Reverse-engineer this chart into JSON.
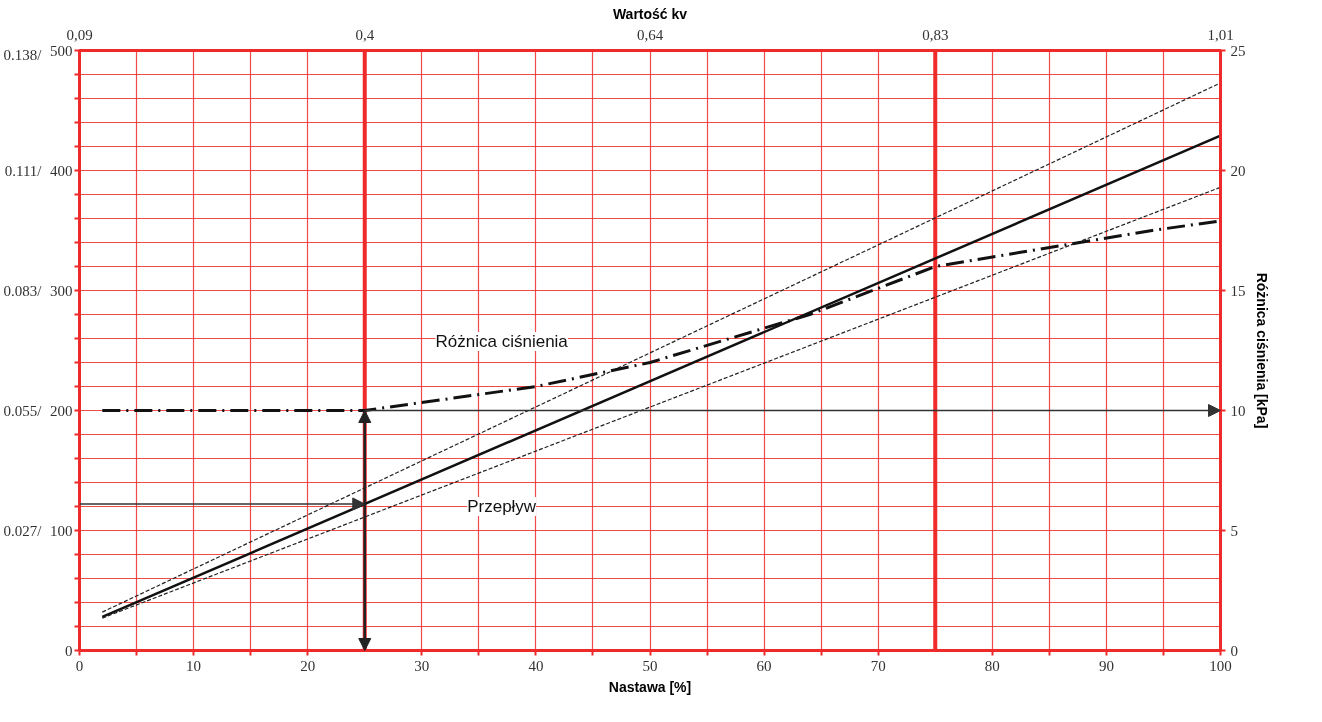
{
  "chart_data": {
    "type": "line",
    "xlabel": "Nastawa [%]",
    "x2label": "Wartość kv",
    "y2label": "Różnica ciśnienia [kPa]",
    "xlim": [
      0,
      100
    ],
    "ylim": [
      0,
      500
    ],
    "y2lim": [
      0,
      25
    ],
    "y3lim": [
      -0.001,
      0.139
    ],
    "xticks": [
      0,
      {
        "value": 5,
        "label": null
      },
      10,
      {
        "value": 15,
        "label": null
      },
      20,
      30,
      {
        "value": 35,
        "label": null
      },
      40,
      {
        "value": 45,
        "label": null
      },
      50,
      {
        "value": 55,
        "label": null
      },
      60,
      {
        "value": 65,
        "label": null
      },
      70,
      80,
      {
        "value": 85,
        "label": null
      },
      90,
      {
        "value": 95,
        "label": null
      },
      100
    ],
    "yticks": [
      0,
      {
        "value": 20,
        "label": null
      },
      {
        "value": 40,
        "label": null
      },
      {
        "value": 60,
        "label": null
      },
      {
        "value": 80,
        "label": null
      },
      100,
      {
        "value": 120,
        "label": null
      },
      {
        "value": 140,
        "label": null
      },
      {
        "value": 160,
        "label": null
      },
      {
        "value": 180,
        "label": null
      },
      200,
      {
        "value": 220,
        "label": null
      },
      {
        "value": 240,
        "label": null
      },
      {
        "value": 260,
        "label": null
      },
      {
        "value": 280,
        "label": null
      },
      300,
      {
        "value": 320,
        "label": null
      },
      {
        "value": 340,
        "label": null
      },
      {
        "value": 360,
        "label": null
      },
      {
        "value": 380,
        "label": null
      },
      400,
      {
        "value": 420,
        "label": null
      },
      {
        "value": 440,
        "label": null
      },
      {
        "value": 460,
        "label": null
      },
      {
        "value": 480,
        "label": null
      },
      500
    ],
    "y3ticks": [
      {
        "value": 0.027,
        "label": "0.027/"
      },
      {
        "value": 0.055,
        "label": "0.055/"
      },
      {
        "value": 0.083,
        "label": "0.083/"
      },
      {
        "value": 0.111,
        "label": "0.111/"
      },
      {
        "value": 0.138,
        "label": "0.138/"
      }
    ],
    "y2ticks": [
      0,
      5,
      10,
      15,
      20,
      25
    ],
    "grid": true,
    "series": [
      {
        "color": "#111111",
        "line_style": "solid",
        "x": [
          2,
          100
        ],
        "values": [
          28,
          429
        ]
      },
      {
        "color": "#222222",
        "line_style": "dashed",
        "x": [
          2,
          100
        ],
        "values": [
          32,
          473
        ]
      },
      {
        "color": "#222222",
        "line_style": "dashed",
        "x": [
          2,
          100
        ],
        "values": [
          27,
          386
        ]
      },
      {
        "color": "#111111",
        "line_style": "dashdot",
        "axis": "y2",
        "x": [
          2,
          25,
          40,
          50,
          64,
          75,
          94,
          100
        ],
        "values": [
          10,
          10,
          11,
          12,
          14,
          16,
          17.5,
          17.9
        ]
      }
    ],
    "ref_lines": [
      {
        "axis": "x",
        "value": 25,
        "label": null,
        "color": "#ee2a2a"
      },
      {
        "axis": "x",
        "value": 75,
        "label": null,
        "color": "#ee2a2a"
      }
    ],
    "annotations": [
      "Różnica ciśnienia",
      "Przepływ",
      "0,09",
      "0,4",
      "0,64",
      "0,83",
      "1,01"
    ]
  }
}
